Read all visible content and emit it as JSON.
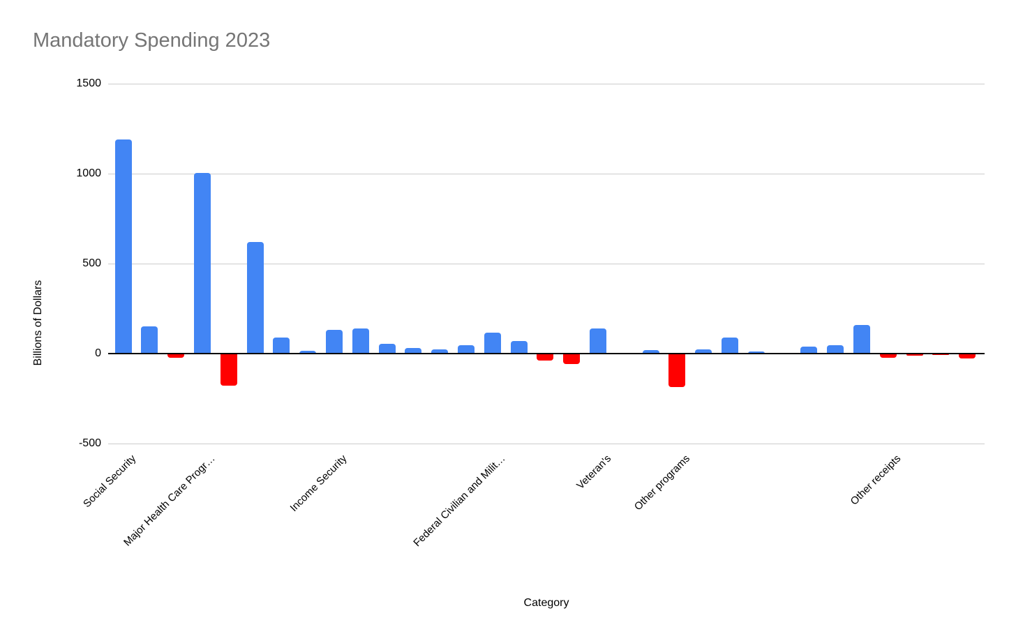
{
  "chart_data": {
    "type": "bar",
    "title": "Mandatory Spending 2023",
    "xlabel": "Category",
    "ylabel": "Billions of Dollars",
    "ylim": [
      -500,
      1500
    ],
    "y_ticks": [
      1500,
      1000,
      500,
      0,
      -500
    ],
    "grid": true,
    "legend": "none",
    "title_color": "#757575",
    "positive_color": "#4285F4",
    "negative_color": "#FF0000",
    "grid_color": "#cccccc",
    "axis_color": "#000000",
    "categories": [
      "Social Security",
      "",
      "",
      "Major Health Care Progr…",
      "",
      "",
      "",
      "",
      "Income Security",
      "",
      "",
      "",
      "",
      "",
      "Federal Civilian and Milit…",
      "",
      "",
      "",
      "Veteran's",
      "",
      "",
      "Other programs",
      "",
      "",
      "",
      "",
      "",
      "",
      "",
      "Other receipts",
      "",
      "",
      ""
    ],
    "values": [
      1190,
      150,
      -20,
      1005,
      -175,
      620,
      90,
      15,
      130,
      140,
      55,
      30,
      25,
      45,
      115,
      70,
      -35,
      -55,
      140,
      0,
      20,
      -185,
      25,
      90,
      10,
      0,
      40,
      45,
      160,
      -20,
      -10,
      -5,
      -25
    ]
  }
}
